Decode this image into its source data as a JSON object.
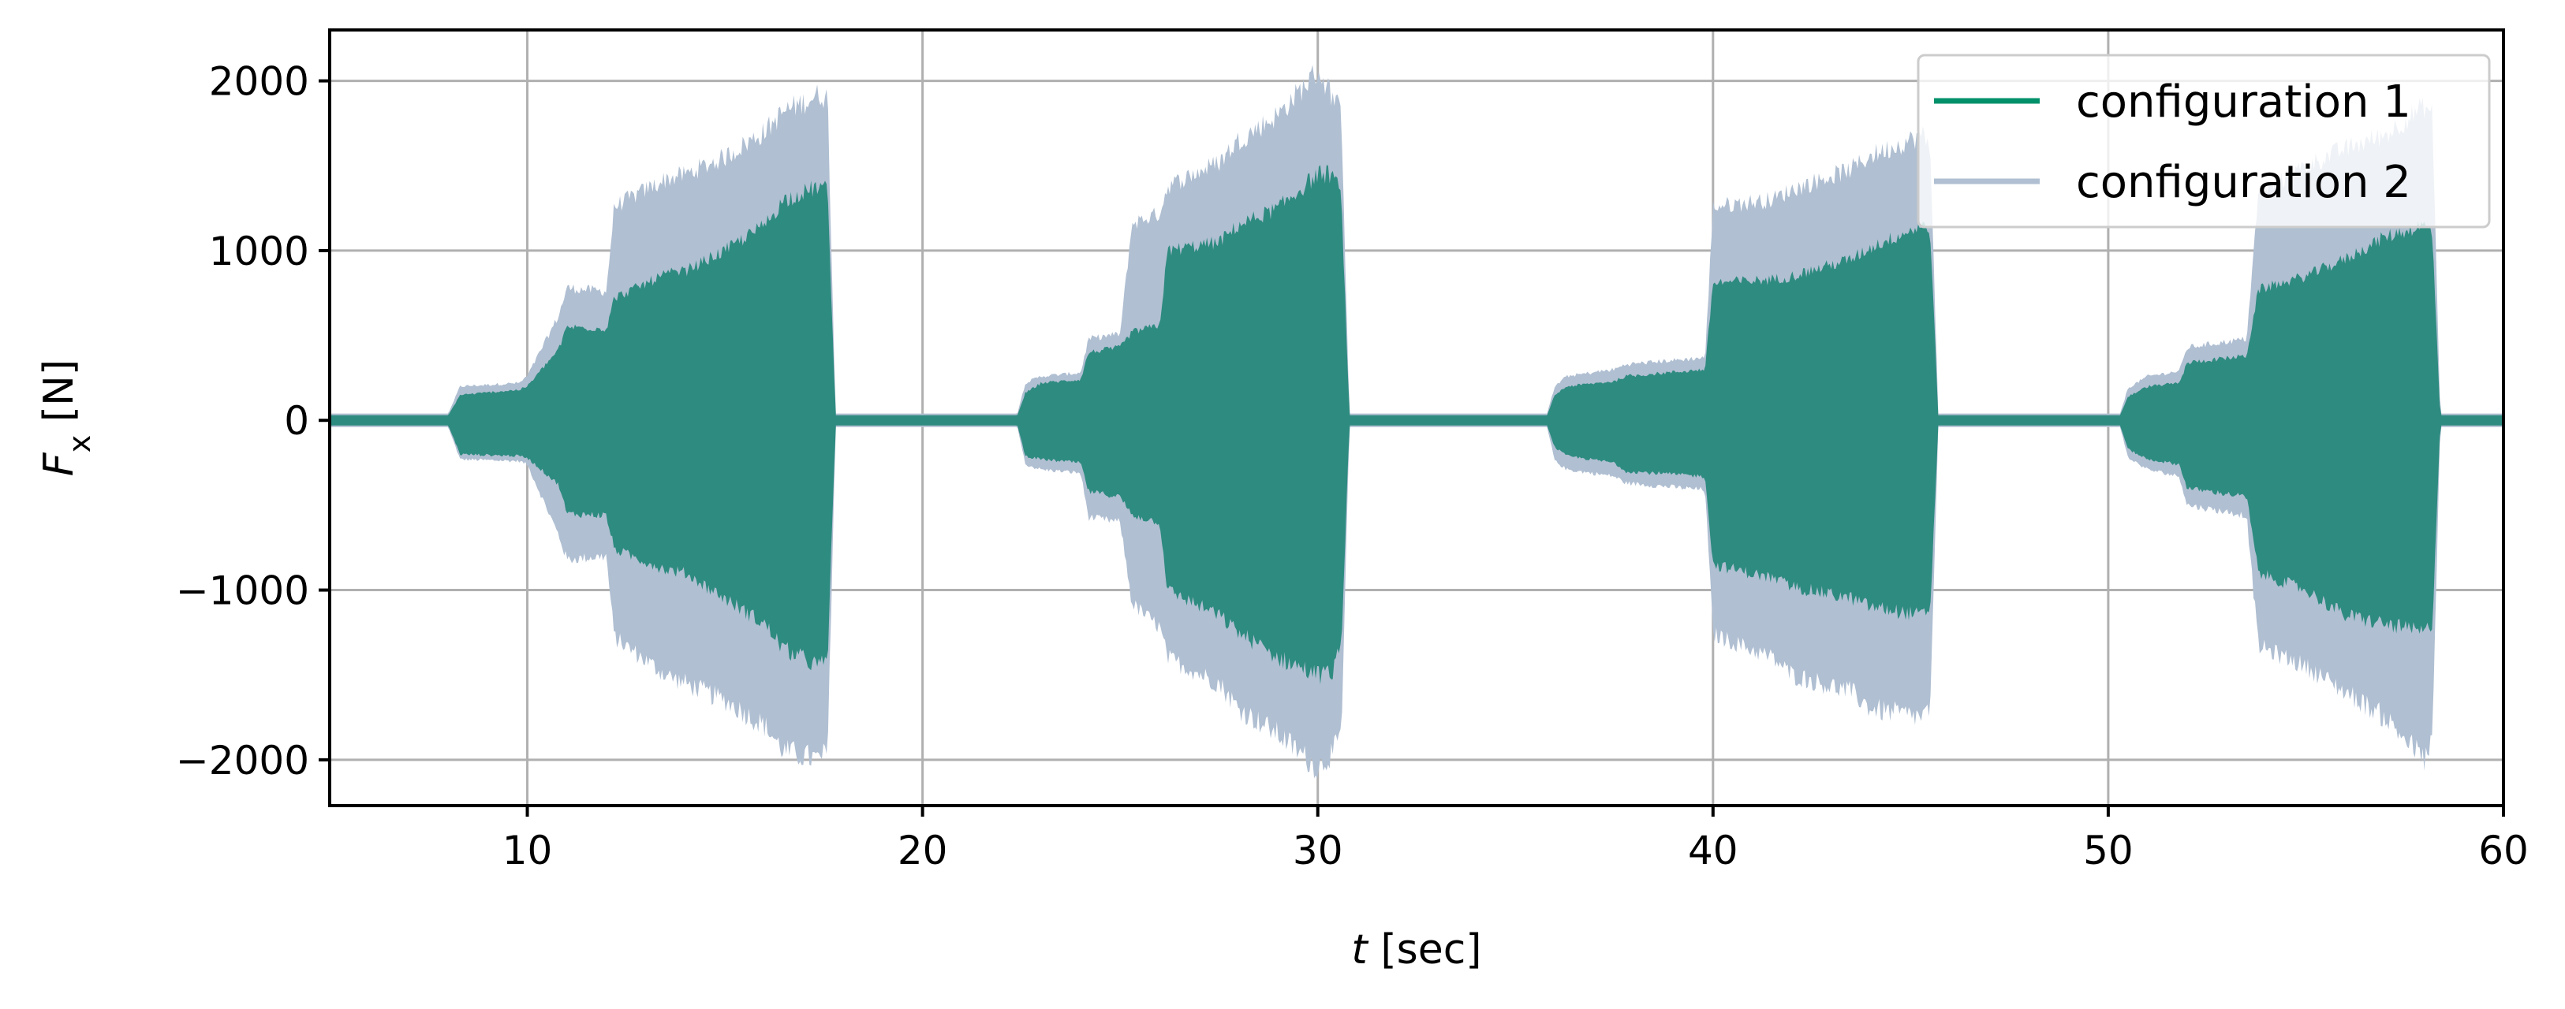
{
  "chart_data": {
    "type": "area",
    "xlabel_var": "t",
    "xlabel_unit": " [sec]",
    "ylabel_var": "F",
    "ylabel_sub": "x",
    "ylabel_unit": " [N]",
    "xlim": [
      5,
      60
    ],
    "ylim": [
      -2270,
      2300
    ],
    "xticks": [
      10,
      20,
      30,
      40,
      50,
      60
    ],
    "xtick_labels": [
      "10",
      "20",
      "30",
      "40",
      "50",
      "60"
    ],
    "yticks": [
      2000,
      1000,
      0,
      -1000,
      -2000
    ],
    "ytick_labels": [
      "2000",
      "1000",
      "0",
      "−1000",
      "−2000"
    ],
    "grid": true,
    "legend_position": "top-right",
    "series": [
      {
        "name": "configuration 1",
        "color": "#2e8b80",
        "legend_color": "#00916a",
        "envelope": {
          "t": [
            5,
            8.0,
            8.3,
            9.8,
            10.0,
            10.8,
            11.0,
            12.0,
            12.2,
            13.5,
            14.0,
            15.0,
            16.0,
            16.5,
            17.4,
            17.6,
            17.8,
            18.0,
            22.4,
            22.6,
            23.0,
            24.0,
            24.2,
            25.0,
            25.3,
            26.0,
            26.2,
            27.5,
            28.0,
            29.0,
            30.0,
            30.4,
            30.6,
            30.8,
            35.8,
            36.0,
            36.3,
            37.5,
            37.8,
            39.8,
            40.0,
            41.5,
            42.0,
            43.5,
            44.0,
            45.3,
            45.5,
            45.7,
            50.3,
            50.5,
            51.0,
            51.8,
            52.0,
            53.5,
            53.8,
            55.0,
            56.0,
            57.0,
            58.0,
            58.2,
            58.4,
            60
          ],
          "upper": [
            30,
            30,
            150,
            180,
            200,
            420,
            550,
            540,
            720,
            860,
            880,
            1000,
            1150,
            1300,
            1380,
            1350,
            30,
            30,
            30,
            160,
            220,
            240,
            400,
            430,
            520,
            560,
            1000,
            1050,
            1150,
            1250,
            1450,
            1450,
            1300,
            30,
            30,
            150,
            200,
            230,
            260,
            300,
            810,
            830,
            850,
            950,
            1020,
            1150,
            1100,
            30,
            30,
            140,
            200,
            220,
            340,
            380,
            770,
            850,
            950,
            1080,
            1150,
            1100,
            30,
            30
          ],
          "lower": [
            -30,
            -30,
            -200,
            -210,
            -220,
            -380,
            -550,
            -560,
            -760,
            -880,
            -900,
            -1050,
            -1200,
            -1350,
            -1450,
            -1400,
            -30,
            -30,
            -30,
            -210,
            -230,
            -250,
            -420,
            -450,
            -560,
            -600,
            -1000,
            -1150,
            -1250,
            -1400,
            -1500,
            -1480,
            -1300,
            -30,
            -30,
            -160,
            -210,
            -250,
            -300,
            -330,
            -850,
            -930,
            -980,
            -1050,
            -1100,
            -1150,
            -1100,
            -30,
            -30,
            -170,
            -230,
            -260,
            -400,
            -450,
            -900,
            -1000,
            -1150,
            -1200,
            -1250,
            -1200,
            -30,
            -30
          ]
        }
      },
      {
        "name": "configuration 2",
        "color": "#b0bfd2",
        "legend_color": "#b0bfd2",
        "envelope": {
          "t": [
            5,
            8.0,
            8.3,
            9.8,
            10.0,
            10.8,
            11.0,
            12.0,
            12.2,
            13.5,
            14.0,
            15.0,
            16.0,
            16.5,
            17.4,
            17.6,
            17.8,
            18.0,
            22.4,
            22.6,
            23.0,
            24.0,
            24.2,
            25.0,
            25.3,
            26.0,
            26.2,
            27.5,
            28.0,
            29.0,
            30.0,
            30.4,
            30.6,
            30.8,
            35.8,
            36.0,
            36.3,
            37.5,
            37.8,
            39.8,
            40.0,
            41.5,
            42.0,
            43.5,
            44.0,
            45.3,
            45.5,
            45.7,
            50.3,
            50.5,
            51.0,
            51.8,
            52.0,
            53.5,
            53.8,
            55.0,
            56.0,
            57.0,
            58.0,
            58.2,
            58.4,
            60
          ],
          "upper": [
            40,
            40,
            200,
            220,
            260,
            620,
            780,
            760,
            1260,
            1420,
            1450,
            1550,
            1700,
            1820,
            1920,
            1900,
            40,
            40,
            40,
            220,
            260,
            280,
            480,
            510,
            1160,
            1220,
            1380,
            1520,
            1650,
            1800,
            2060,
            1900,
            1800,
            40,
            40,
            200,
            260,
            300,
            330,
            370,
            1260,
            1300,
            1360,
            1480,
            1560,
            1680,
            1600,
            40,
            40,
            190,
            260,
            290,
            430,
            480,
            1330,
            1500,
            1600,
            1680,
            1850,
            1800,
            40,
            40
          ],
          "lower": [
            -40,
            -40,
            -230,
            -240,
            -260,
            -680,
            -820,
            -800,
            -1280,
            -1500,
            -1550,
            -1650,
            -1800,
            -1950,
            -2000,
            -1950,
            -40,
            -40,
            -40,
            -260,
            -290,
            -310,
            -570,
            -600,
            -1080,
            -1220,
            -1400,
            -1550,
            -1700,
            -1850,
            -2050,
            -1950,
            -1850,
            -40,
            -40,
            -240,
            -290,
            -330,
            -370,
            -410,
            -1260,
            -1400,
            -1500,
            -1600,
            -1700,
            -1750,
            -1700,
            -40,
            -40,
            -220,
            -290,
            -330,
            -500,
            -560,
            -1330,
            -1450,
            -1600,
            -1750,
            -2000,
            -1900,
            -40,
            -40
          ]
        }
      }
    ]
  }
}
